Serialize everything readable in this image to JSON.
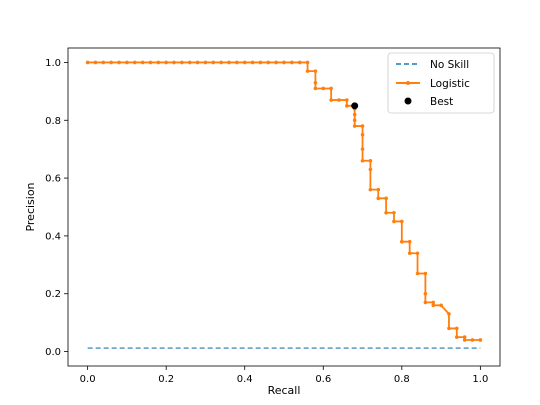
{
  "chart_data": {
    "type": "line",
    "title": "",
    "xlabel": "Recall",
    "ylabel": "Precision",
    "xlim": [
      -0.05,
      1.05
    ],
    "ylim": [
      -0.05,
      1.05
    ],
    "xticks": [
      0.0,
      0.2,
      0.4,
      0.6,
      0.8,
      1.0
    ],
    "yticks": [
      0.0,
      0.2,
      0.4,
      0.6,
      0.8,
      1.0
    ],
    "xtick_labels": [
      "0.0",
      "0.2",
      "0.4",
      "0.6",
      "0.8",
      "1.0"
    ],
    "ytick_labels": [
      "0.0",
      "0.2",
      "0.4",
      "0.6",
      "0.8",
      "1.0"
    ],
    "grid": false,
    "legend_position": "top-right",
    "series": [
      {
        "name": "No Skill",
        "kind": "line",
        "style": "dashed",
        "color": "#1f77b4",
        "x": [
          0.0,
          1.0
        ],
        "y": [
          0.012,
          0.012
        ]
      },
      {
        "name": "Logistic",
        "kind": "line-marker",
        "color": "#ff7f0e",
        "x": [
          0.0,
          0.02,
          0.04,
          0.06,
          0.08,
          0.1,
          0.12,
          0.14,
          0.16,
          0.18,
          0.2,
          0.22,
          0.24,
          0.26,
          0.28,
          0.3,
          0.32,
          0.34,
          0.36,
          0.38,
          0.4,
          0.42,
          0.44,
          0.46,
          0.48,
          0.5,
          0.52,
          0.54,
          0.56,
          0.56,
          0.58,
          0.58,
          0.58,
          0.6,
          0.62,
          0.62,
          0.64,
          0.66,
          0.66,
          0.68,
          0.68,
          0.68,
          0.68,
          0.68,
          0.7,
          0.7,
          0.7,
          0.7,
          0.72,
          0.72,
          0.72,
          0.74,
          0.74,
          0.76,
          0.76,
          0.78,
          0.78,
          0.8,
          0.8,
          0.82,
          0.82,
          0.84,
          0.84,
          0.86,
          0.86,
          0.86,
          0.88,
          0.88,
          0.9,
          0.92,
          0.92,
          0.94,
          0.94,
          0.96,
          0.96,
          0.98,
          1.0
        ],
        "y": [
          1.0,
          1.0,
          1.0,
          1.0,
          1.0,
          1.0,
          1.0,
          1.0,
          1.0,
          1.0,
          1.0,
          1.0,
          1.0,
          1.0,
          1.0,
          1.0,
          1.0,
          1.0,
          1.0,
          1.0,
          1.0,
          1.0,
          1.0,
          1.0,
          1.0,
          1.0,
          1.0,
          1.0,
          1.0,
          0.97,
          0.97,
          0.93,
          0.91,
          0.91,
          0.91,
          0.87,
          0.87,
          0.87,
          0.85,
          0.85,
          0.84,
          0.82,
          0.8,
          0.78,
          0.78,
          0.75,
          0.7,
          0.66,
          0.66,
          0.63,
          0.56,
          0.56,
          0.53,
          0.53,
          0.48,
          0.48,
          0.45,
          0.45,
          0.38,
          0.38,
          0.34,
          0.34,
          0.27,
          0.27,
          0.2,
          0.17,
          0.17,
          0.16,
          0.16,
          0.13,
          0.08,
          0.08,
          0.05,
          0.05,
          0.04,
          0.04,
          0.04
        ]
      },
      {
        "name": "Best",
        "kind": "point",
        "color": "#000000",
        "x": [
          0.68
        ],
        "y": [
          0.85
        ]
      }
    ]
  }
}
